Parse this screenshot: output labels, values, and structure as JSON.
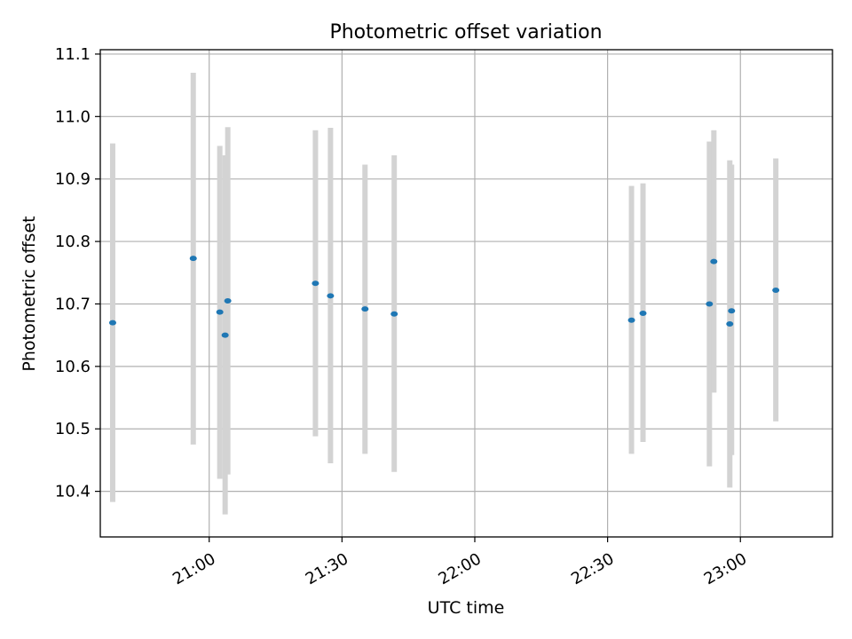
{
  "chart_data": {
    "type": "scatter",
    "title": "Photometric offset variation",
    "xlabel": "UTC time",
    "ylabel": "Photometric offset",
    "grid": true,
    "colors": {
      "point": "#1f77b4",
      "errorbar": "#d3d3d3",
      "grid": "#b0b0b0",
      "axis": "#000000"
    },
    "x_unit": "minutes since 20:00 UTC",
    "xlim": [
      35.4,
      200.8
    ],
    "ylim": [
      10.327,
      11.107
    ],
    "x_ticks": [
      {
        "value": 60,
        "label": "21:00"
      },
      {
        "value": 90,
        "label": "21:30"
      },
      {
        "value": 120,
        "label": "22:00"
      },
      {
        "value": 150,
        "label": "22:30"
      },
      {
        "value": 180,
        "label": "23:00"
      }
    ],
    "y_ticks": [
      {
        "value": 10.4,
        "label": "10.4"
      },
      {
        "value": 10.5,
        "label": "10.5"
      },
      {
        "value": 10.6,
        "label": "10.6"
      },
      {
        "value": 10.7,
        "label": "10.7"
      },
      {
        "value": 10.8,
        "label": "10.8"
      },
      {
        "value": 10.9,
        "label": "10.9"
      },
      {
        "value": 11.0,
        "label": "11.0"
      },
      {
        "value": 11.1,
        "label": "11.1"
      }
    ],
    "points": [
      {
        "x": 38.2,
        "y": 10.67,
        "low": 10.383,
        "high": 10.957
      },
      {
        "x": 56.4,
        "y": 10.773,
        "low": 10.475,
        "high": 11.07
      },
      {
        "x": 62.4,
        "y": 10.687,
        "low": 10.42,
        "high": 10.953
      },
      {
        "x": 63.6,
        "y": 10.65,
        "low": 10.363,
        "high": 10.938
      },
      {
        "x": 64.2,
        "y": 10.705,
        "low": 10.427,
        "high": 10.983
      },
      {
        "x": 84.0,
        "y": 10.733,
        "low": 10.488,
        "high": 10.978
      },
      {
        "x": 87.4,
        "y": 10.713,
        "low": 10.445,
        "high": 10.982
      },
      {
        "x": 95.2,
        "y": 10.692,
        "low": 10.46,
        "high": 10.923
      },
      {
        "x": 101.8,
        "y": 10.684,
        "low": 10.431,
        "high": 10.938
      },
      {
        "x": 155.4,
        "y": 10.674,
        "low": 10.46,
        "high": 10.889
      },
      {
        "x": 158.0,
        "y": 10.685,
        "low": 10.479,
        "high": 10.893
      },
      {
        "x": 173.0,
        "y": 10.7,
        "low": 10.44,
        "high": 10.96
      },
      {
        "x": 174.0,
        "y": 10.768,
        "low": 10.558,
        "high": 10.978
      },
      {
        "x": 177.6,
        "y": 10.668,
        "low": 10.406,
        "high": 10.93
      },
      {
        "x": 178.0,
        "y": 10.689,
        "low": 10.458,
        "high": 10.923
      },
      {
        "x": 188.0,
        "y": 10.722,
        "low": 10.512,
        "high": 10.933
      }
    ]
  }
}
